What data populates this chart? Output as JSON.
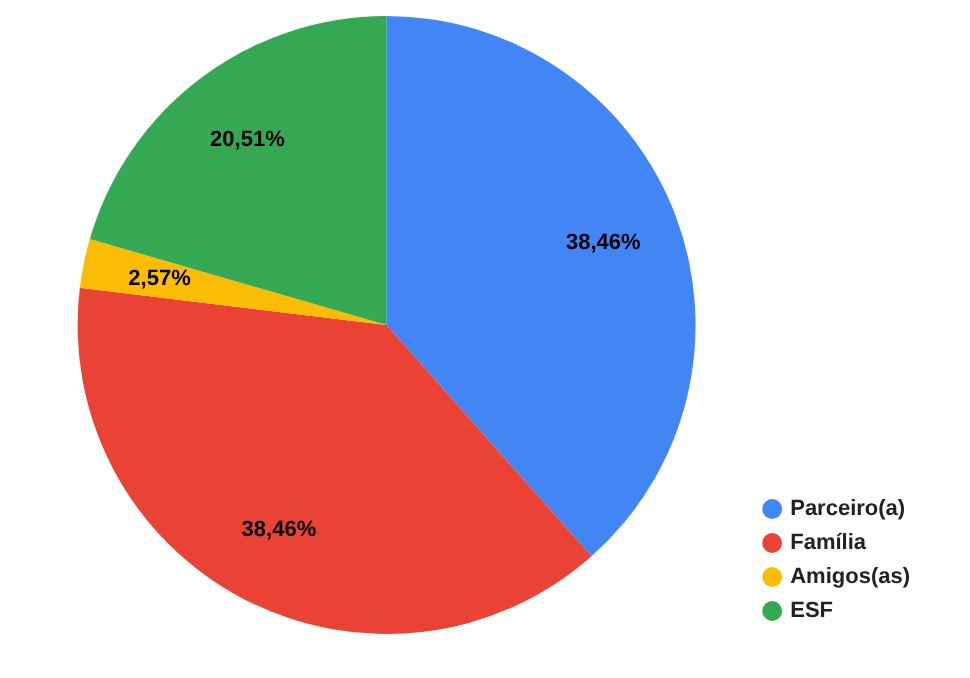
{
  "chart_data": {
    "type": "pie",
    "categories": [
      "Parceiro(a)",
      "Família",
      "Amigos(as)",
      "ESF"
    ],
    "values": [
      38.46,
      38.46,
      2.57,
      20.51
    ],
    "colors": [
      "#4285f4",
      "#ea4335",
      "#fbbc04",
      "#34a853"
    ],
    "value_labels": [
      "38,46%",
      "38,46%",
      "2,57%",
      "20,51%"
    ],
    "legend": "bottom right"
  }
}
